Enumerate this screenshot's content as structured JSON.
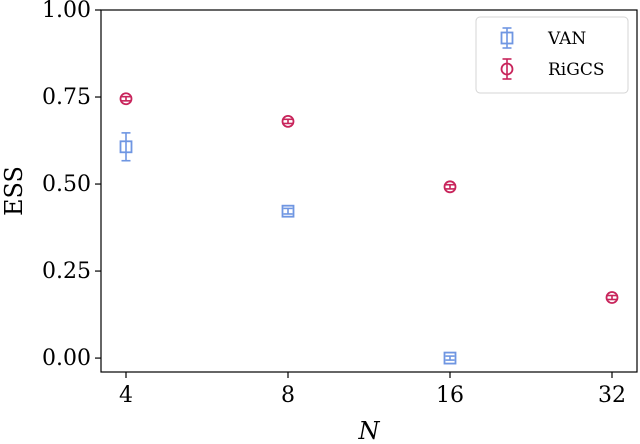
{
  "chart_data": {
    "type": "scatter",
    "xlabel": "N",
    "ylabel": "ESS",
    "x_scale": "log2",
    "x_ticks": [
      4,
      8,
      16,
      32
    ],
    "x_tick_labels": [
      "4",
      "8",
      "16",
      "32"
    ],
    "ylim": [
      -0.04,
      1.0
    ],
    "y_ticks": [
      0.0,
      0.25,
      0.5,
      0.75,
      1.0
    ],
    "y_tick_labels": [
      "0.00",
      "0.25",
      "0.50",
      "0.75",
      "1.00"
    ],
    "grid": false,
    "legend_position": "top-right",
    "series": [
      {
        "name": "VAN",
        "color": "#6f96e2",
        "marker": "square",
        "x": [
          4,
          8,
          16
        ],
        "y": [
          0.607,
          0.422,
          0.0
        ],
        "yerr": [
          0.04,
          0.008,
          0.005
        ]
      },
      {
        "name": "RiGCS",
        "color": "#c8245b",
        "marker": "circle",
        "x": [
          4,
          8,
          16,
          32
        ],
        "y": [
          0.745,
          0.68,
          0.492,
          0.174
        ],
        "yerr": [
          0.006,
          0.006,
          0.006,
          0.005
        ]
      }
    ]
  }
}
